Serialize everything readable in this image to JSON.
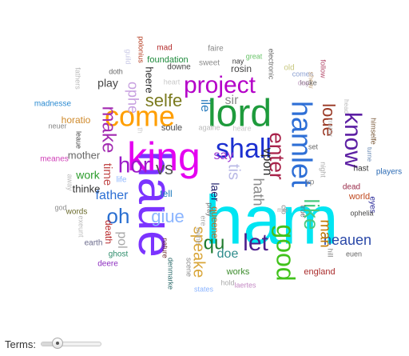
{
  "controls": {
    "terms_label": "Terms:",
    "terms_slider_level": 0.22
  },
  "cloud": {
    "words": [
      {
        "text": "ham",
        "color": "#00e5f2",
        "vertical": false
      },
      {
        "text": "haue",
        "color": "#7b33ff",
        "vertical": true
      },
      {
        "text": "king",
        "color": "#e400f0",
        "vertical": false
      },
      {
        "text": "lord",
        "color": "#1e9b3c",
        "vertical": false
      },
      {
        "text": "come",
        "color": "#ff9e00",
        "vertical": false
      },
      {
        "text": "hamlet",
        "color": "#2e6fd6",
        "vertical": true
      },
      {
        "text": "shall",
        "color": "#1b2fd0",
        "vertical": false
      },
      {
        "text": "good",
        "color": "#41c21b",
        "vertical": true
      },
      {
        "text": "project",
        "color": "#b400c8",
        "vertical": false
      },
      {
        "text": "enter",
        "color": "#a8224a",
        "vertical": true
      },
      {
        "text": "know",
        "color": "#5c1fa3",
        "vertical": true
      },
      {
        "text": "hor",
        "color": "#9b19c9",
        "vertical": false
      },
      {
        "text": "oh",
        "color": "#2a6fd1",
        "vertical": false
      },
      {
        "text": "let",
        "color": "#4c1e8c",
        "vertical": false
      },
      {
        "text": "like",
        "color": "#49c97f",
        "vertical": true
      },
      {
        "text": "vs",
        "color": "#555555",
        "vertical": false
      },
      {
        "text": "make",
        "color": "#a32cb2",
        "vertical": true
      },
      {
        "text": "selfe",
        "color": "#7a7a1e",
        "vertical": false
      },
      {
        "text": "loue",
        "color": "#9a3a26",
        "vertical": true
      },
      {
        "text": "qu",
        "color": "#1e7a2c",
        "vertical": false
      },
      {
        "text": "giue",
        "color": "#8ab4ff",
        "vertical": false
      },
      {
        "text": "speake",
        "color": "#d9a63a",
        "vertical": true
      },
      {
        "text": "heauen",
        "color": "#2b49a8",
        "vertical": false
      },
      {
        "text": "tis",
        "color": "#b9b9e6",
        "vertical": true
      },
      {
        "text": "hath",
        "color": "#8c8c8c",
        "vertical": true
      },
      {
        "text": "man",
        "color": "#c27800",
        "vertical": true
      },
      {
        "text": "father",
        "color": "#2c6fd4",
        "vertical": false
      },
      {
        "text": "sir",
        "color": "#8a8a8a",
        "vertical": false
      },
      {
        "text": "say",
        "color": "#9b33d1",
        "vertical": false
      },
      {
        "text": "ile",
        "color": "#2e7fbf",
        "vertical": true
      },
      {
        "text": "doe",
        "color": "#2e8c8c",
        "vertical": false
      },
      {
        "text": "vpon",
        "color": "#2a2a2a",
        "vertical": true
      },
      {
        "text": "mother",
        "color": "#666666",
        "vertical": false
      },
      {
        "text": "ophe",
        "color": "#c7a0e0",
        "vertical": true
      },
      {
        "text": "time",
        "color": "#c14a4a",
        "vertical": true
      },
      {
        "text": "work",
        "color": "#2c9c2c",
        "vertical": false
      },
      {
        "text": "play",
        "color": "#444444",
        "vertical": false
      },
      {
        "text": "pol",
        "color": "#a8a8a8",
        "vertical": true
      },
      {
        "text": "laer",
        "color": "#1e1e6a",
        "vertical": true
      },
      {
        "text": "heere",
        "color": "#2c2c2c",
        "vertical": true
      },
      {
        "text": "thinke",
        "color": "#333333",
        "vertical": false
      },
      {
        "text": "rosin",
        "color": "#444444",
        "vertical": false
      },
      {
        "text": "horatio",
        "color": "#cf8a2c",
        "vertical": false
      },
      {
        "text": "madnesse",
        "color": "#2a8ad1",
        "vertical": false
      },
      {
        "text": "foundation",
        "color": "#1e8a3c",
        "vertical": false
      },
      {
        "text": "soule",
        "color": "#4a4a4a",
        "vertical": false
      },
      {
        "text": "tell",
        "color": "#1e7abf",
        "vertical": false
      },
      {
        "text": "queene",
        "color": "#c06a20",
        "vertical": true
      },
      {
        "text": "death",
        "color": "#b8282a",
        "vertical": true
      },
      {
        "text": "world",
        "color": "#c04a20",
        "vertical": false
      },
      {
        "text": "players",
        "color": "#2a6ab4",
        "vertical": false
      },
      {
        "text": "dead",
        "color": "#9a2c4a",
        "vertical": false
      },
      {
        "text": "eyes",
        "color": "#2c2c9a",
        "vertical": true
      },
      {
        "text": "england",
        "color": "#aa2c2c",
        "vertical": false
      },
      {
        "text": "works",
        "color": "#3c8c2c",
        "vertical": false
      },
      {
        "text": "ghost",
        "color": "#2c8c6a",
        "vertical": false
      },
      {
        "text": "earth",
        "color": "#6a6a8c",
        "vertical": false
      },
      {
        "text": "deere",
        "color": "#8c2cbf",
        "vertical": false
      },
      {
        "text": "words",
        "color": "#6a6a2c",
        "vertical": false
      },
      {
        "text": "meanes",
        "color": "#d040b8",
        "vertical": false
      },
      {
        "text": "life",
        "color": "#8ab4ff",
        "vertical": false
      },
      {
        "text": "neuer",
        "color": "#888888",
        "vertical": false
      },
      {
        "text": "fathers",
        "color": "#bbbbbb",
        "vertical": true
      },
      {
        "text": "polonius",
        "color": "#b43a1e",
        "vertical": true
      },
      {
        "text": "guild",
        "color": "#c8c8e6",
        "vertical": true
      },
      {
        "text": "doth",
        "color": "#666666",
        "vertical": false
      },
      {
        "text": "mad",
        "color": "#b42c2c",
        "vertical": false
      },
      {
        "text": "faire",
        "color": "#888888",
        "vertical": false
      },
      {
        "text": "downe",
        "color": "#444444",
        "vertical": false
      },
      {
        "text": "sweet",
        "color": "#8c8c8c",
        "vertical": false
      },
      {
        "text": "nay",
        "color": "#3c3c3c",
        "vertical": false
      },
      {
        "text": "great",
        "color": "#6ac46a",
        "vertical": false
      },
      {
        "text": "electronic",
        "color": "#666666",
        "vertical": true
      },
      {
        "text": "old",
        "color": "#c8c880",
        "vertical": false
      },
      {
        "text": "comes",
        "color": "#8ca0d1",
        "vertical": false
      },
      {
        "text": "follow",
        "color": "#b44a6a",
        "vertical": true
      },
      {
        "text": "shew",
        "color": "#c8a880",
        "vertical": true
      },
      {
        "text": "looke",
        "color": "#6a6a6a",
        "vertical": false
      },
      {
        "text": "day",
        "color": "#c8a8c8",
        "vertical": false
      },
      {
        "text": "heart",
        "color": "#c8c8c8",
        "vertical": false
      },
      {
        "text": "head",
        "color": "#bbbbbb",
        "vertical": true
      },
      {
        "text": "matter",
        "color": "#bbbbbb",
        "vertical": true
      },
      {
        "text": "himselfe",
        "color": "#7a5a3a",
        "vertical": true
      },
      {
        "text": "hast",
        "color": "#333333",
        "vertical": false
      },
      {
        "text": "set",
        "color": "#6a6a6a",
        "vertical": false
      },
      {
        "text": "night",
        "color": "#aaaaaa",
        "vertical": true
      },
      {
        "text": "ophelia",
        "color": "#4a4a4a",
        "vertical": false
      },
      {
        "text": "laertes",
        "color": "#c48ac4",
        "vertical": false
      },
      {
        "text": "nature",
        "color": "#6a2c2c",
        "vertical": true
      },
      {
        "text": "denmarke",
        "color": "#2c6a6a",
        "vertical": true
      },
      {
        "text": "againe",
        "color": "#bbbbbb",
        "vertical": false
      },
      {
        "text": "heare",
        "color": "#c8c8c8",
        "vertical": false
      },
      {
        "text": "pray",
        "color": "#6a6a6a",
        "vertical": true
      },
      {
        "text": "owne",
        "color": "#aaaaaa",
        "vertical": true
      },
      {
        "text": "hold",
        "color": "#aaaaaa",
        "vertical": false
      },
      {
        "text": "states",
        "color": "#8ab4ff",
        "vertical": false
      },
      {
        "text": "euen",
        "color": "#666666",
        "vertical": false
      },
      {
        "text": "exeunt",
        "color": "#bbbbbb",
        "vertical": true
      },
      {
        "text": "god",
        "color": "#8c8c8c",
        "vertical": false
      },
      {
        "text": "away",
        "color": "#bbbbbb",
        "vertical": true
      },
      {
        "text": "leaue",
        "color": "#4a4a4a",
        "vertical": true
      },
      {
        "text": "true",
        "color": "#6a6a6a",
        "vertical": true
      },
      {
        "text": "vp",
        "color": "#888888",
        "vertical": false
      },
      {
        "text": "clo",
        "color": "#888888",
        "vertical": true
      },
      {
        "text": "mar",
        "color": "#aaaaaa",
        "vertical": false
      },
      {
        "text": "turne",
        "color": "#6a8ab4",
        "vertical": true
      },
      {
        "text": "hill",
        "color": "#888888",
        "vertical": true
      },
      {
        "text": "scene",
        "color": "#8c8c8c",
        "vertical": true
      },
      {
        "text": "th",
        "color": "#cccccc",
        "vertical": true
      },
      {
        "text": "ere",
        "color": "#aaaaaa",
        "vertical": true
      }
    ]
  }
}
